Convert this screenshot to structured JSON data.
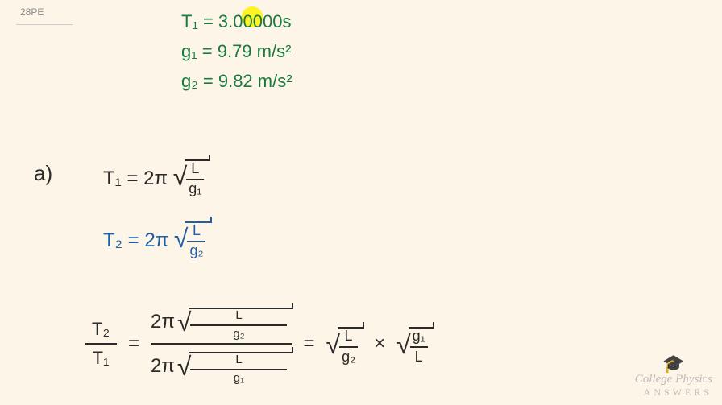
{
  "problem_label": "28PE",
  "given": {
    "T1_label": "T₁ = 3.00000s",
    "g1_label": "g₁ = 9.79 m/s²",
    "g2_label": "g₂ = 9.82 m/s²"
  },
  "highlight": {
    "color": "#fff200"
  },
  "part_label": "a)",
  "equations": {
    "eq1": {
      "lhs": "T₁",
      "coeff": "2π",
      "frac_num": "L",
      "frac_den": "g₁"
    },
    "eq2": {
      "lhs": "T₂",
      "coeff": "2π",
      "frac_num": "L",
      "frac_den": "g₂"
    },
    "eq3": {
      "left_frac_num": "T₂",
      "left_frac_den": "T₁",
      "mid_num_coeff": "2π",
      "mid_num_frac_num": "L",
      "mid_num_frac_den": "g₂",
      "mid_den_coeff": "2π",
      "mid_den_frac_num": "L",
      "mid_den_frac_den": "g₁",
      "right1_num": "L",
      "right1_den": "g₂",
      "mult": "×",
      "right2_num": "g₁",
      "right2_den": "L"
    }
  },
  "colors": {
    "background": "#fdf6e8",
    "green_ink": "#1a7a3e",
    "black_ink": "#2a2a2a",
    "blue_ink": "#1e5fa8",
    "watermark": "#bbbbbb"
  },
  "typography": {
    "handwriting_font": "Comic Sans MS",
    "base_size_pt": 22
  },
  "watermark": {
    "icon": "🎓",
    "title": "College Physics",
    "subtitle": "ANSWERS"
  }
}
